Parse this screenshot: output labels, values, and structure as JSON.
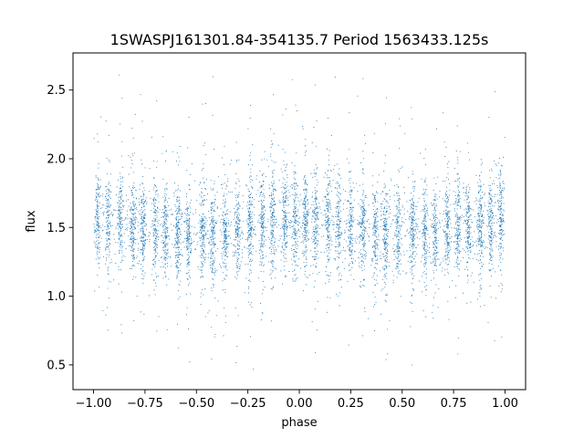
{
  "chart_data": {
    "type": "scatter",
    "title": "1SWASPJ161301.84-354135.7 Period 1563433.125s",
    "xlabel": "phase",
    "ylabel": "flux",
    "xlim": [
      -1.1,
      1.1
    ],
    "ylim": [
      0.32,
      2.77
    ],
    "x_ticks": [
      -1.0,
      -0.75,
      -0.5,
      -0.25,
      0.0,
      0.25,
      0.5,
      0.75,
      1.0
    ],
    "x_tick_labels": [
      "−1.00",
      "−0.75",
      "−0.50",
      "−0.25",
      "0.00",
      "0.25",
      "0.50",
      "0.75",
      "1.00"
    ],
    "y_ticks": [
      0.5,
      1.0,
      1.5,
      2.0,
      2.5
    ],
    "y_tick_labels": [
      "0.5",
      "1.0",
      "1.5",
      "2.0",
      "2.5"
    ],
    "grid": false,
    "legend": "none",
    "marker_color": "#1f77b4",
    "series": [
      {
        "phase_range": [
          -1.0,
          1.0
        ],
        "flux_median": 1.5,
        "flux_core_range": [
          1.2,
          1.8
        ],
        "flux_full_range": [
          0.43,
          2.66
        ],
        "symmetric_about_phase_zero": true,
        "clump_phases": [
          -0.98,
          -0.93,
          -0.87,
          -0.81,
          -0.76,
          -0.7,
          -0.65,
          -0.59,
          -0.54,
          -0.47,
          -0.42,
          -0.36,
          -0.3,
          -0.24,
          -0.18,
          -0.13,
          -0.07,
          -0.02,
          0.03,
          0.08,
          0.14,
          0.19,
          0.25,
          0.31,
          0.37,
          0.42,
          0.48,
          0.55,
          0.61,
          0.66,
          0.72,
          0.77,
          0.82,
          0.88,
          0.93,
          0.98
        ]
      }
    ]
  }
}
